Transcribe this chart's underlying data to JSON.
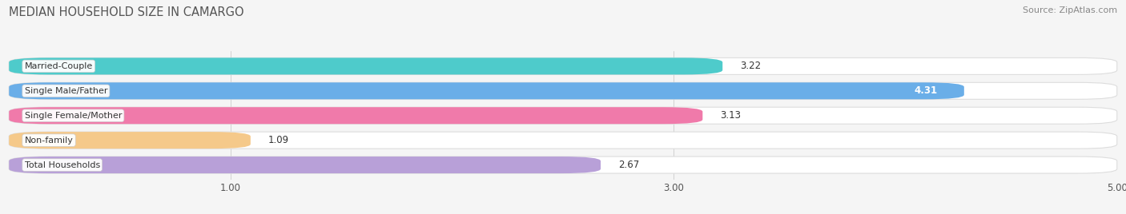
{
  "title": "MEDIAN HOUSEHOLD SIZE IN CAMARGO",
  "source": "Source: ZipAtlas.com",
  "categories": [
    "Married-Couple",
    "Single Male/Father",
    "Single Female/Mother",
    "Non-family",
    "Total Households"
  ],
  "values": [
    3.22,
    4.31,
    3.13,
    1.09,
    2.67
  ],
  "bar_colors": [
    "#4ecbcb",
    "#6aaee8",
    "#f07aaa",
    "#f5c98a",
    "#b8a0d8"
  ],
  "value_inside": [
    false,
    true,
    false,
    false,
    false
  ],
  "xlim_min": 0.0,
  "xlim_max": 5.0,
  "xticks": [
    1.0,
    3.0,
    5.0
  ],
  "background_color": "#f5f5f5",
  "bar_bg_color": "#ffffff",
  "title_fontsize": 10.5,
  "source_fontsize": 8,
  "label_fontsize": 8,
  "value_fontsize": 8.5,
  "bar_height": 0.68,
  "bar_spacing": 1.0,
  "rounding": 0.18
}
